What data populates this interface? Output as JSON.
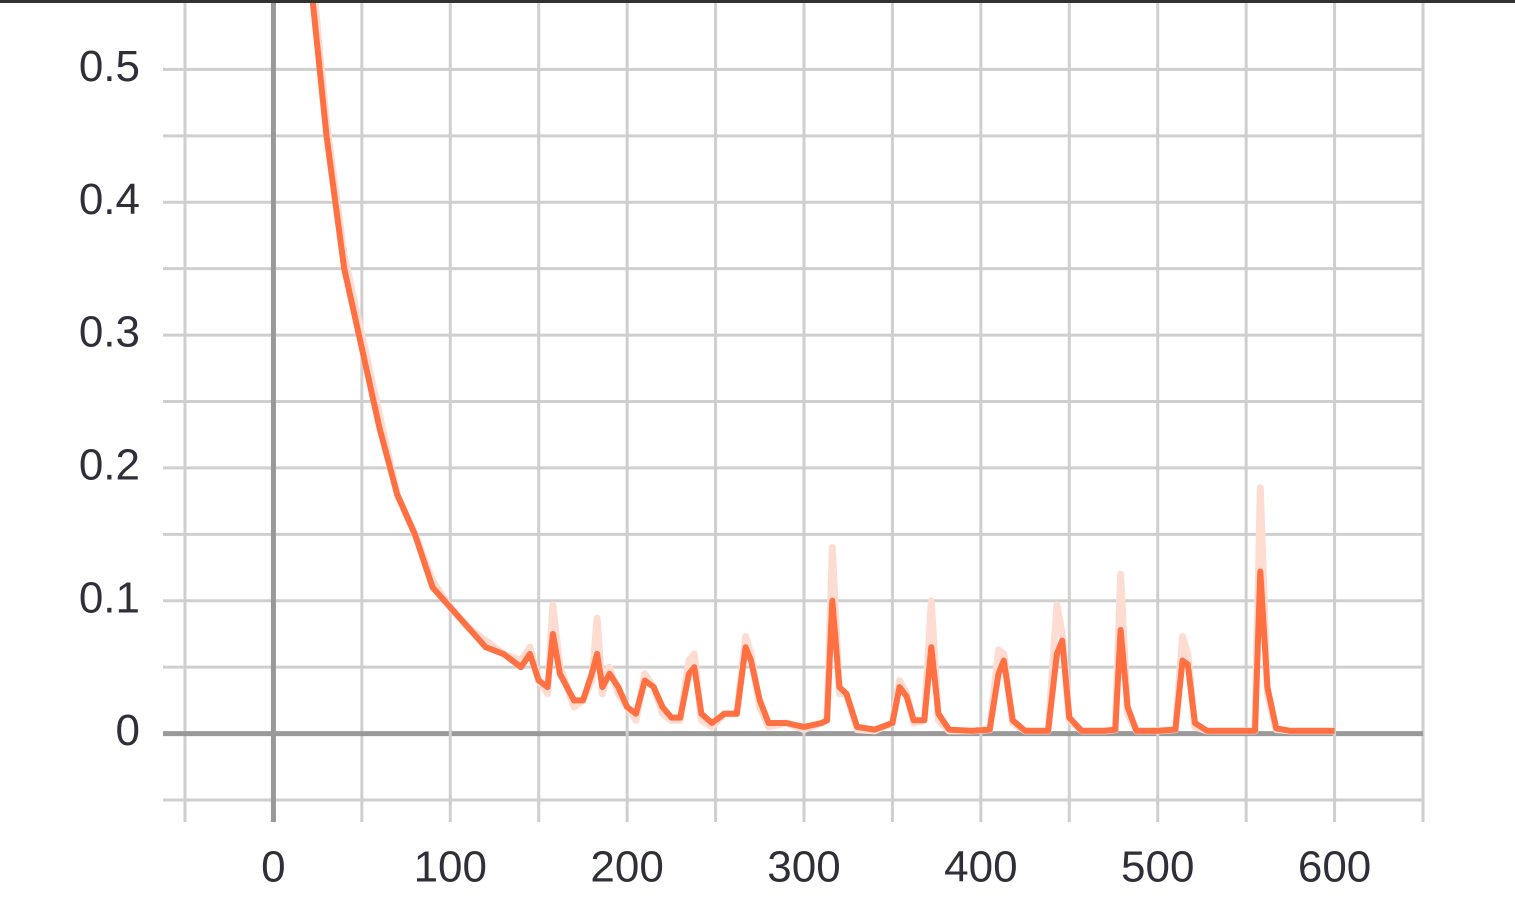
{
  "chart_data": {
    "type": "line",
    "xlim": [
      -50,
      650
    ],
    "ylim": [
      -0.05,
      0.55
    ],
    "xticks": [
      0,
      100,
      200,
      300,
      400,
      500,
      600
    ],
    "yticks": [
      0,
      0.1,
      0.2,
      0.3,
      0.4,
      0.5
    ],
    "x_minor_ticks": [
      -50,
      50,
      150,
      250,
      350,
      450,
      550,
      650
    ],
    "y_minor_ticks": [
      -0.05,
      0.05,
      0.15,
      0.25,
      0.35,
      0.45
    ],
    "grid": true,
    "x": [
      20,
      30,
      40,
      50,
      60,
      70,
      80,
      90,
      100,
      110,
      120,
      130,
      140,
      145,
      150,
      155,
      158,
      162,
      170,
      175,
      180,
      183,
      186,
      190,
      195,
      200,
      205,
      210,
      215,
      220,
      225,
      230,
      235,
      238,
      242,
      248,
      255,
      262,
      267,
      270,
      275,
      280,
      290,
      300,
      310,
      313,
      316,
      320,
      324,
      330,
      340,
      350,
      354,
      358,
      362,
      368,
      372,
      376,
      382,
      395,
      405,
      410,
      413,
      418,
      425,
      438,
      443,
      446,
      450,
      457,
      470,
      476,
      479,
      483,
      488,
      500,
      510,
      514,
      517,
      521,
      528,
      550,
      555,
      558,
      562,
      567,
      575,
      600
    ],
    "series": [
      {
        "color": "#ffdcd2",
        "values": [
          0.6,
          0.46,
          0.36,
          0.3,
          0.24,
          0.18,
          0.15,
          0.115,
          0.095,
          0.08,
          0.07,
          0.06,
          0.055,
          0.065,
          0.04,
          0.03,
          0.097,
          0.05,
          0.02,
          0.025,
          0.04,
          0.087,
          0.03,
          0.05,
          0.03,
          0.02,
          0.01,
          0.045,
          0.035,
          0.015,
          0.01,
          0.01,
          0.055,
          0.06,
          0.01,
          0.005,
          0.015,
          0.015,
          0.073,
          0.06,
          0.02,
          0.005,
          0.008,
          0.003,
          0.008,
          0.01,
          0.14,
          0.03,
          0.03,
          0.003,
          0.002,
          0.008,
          0.04,
          0.03,
          0.008,
          0.01,
          0.1,
          0.01,
          0.002,
          0.002,
          0.003,
          0.063,
          0.06,
          0.008,
          0.002,
          0.002,
          0.097,
          0.075,
          0.01,
          0.002,
          0.002,
          0.003,
          0.12,
          0.015,
          0.002,
          0.002,
          0.003,
          0.073,
          0.06,
          0.005,
          0.002,
          0.002,
          0.002,
          0.185,
          0.03,
          0.003,
          0.002,
          0.002
        ]
      },
      {
        "color": "#ff7043",
        "values": [
          0.58,
          0.45,
          0.35,
          0.29,
          0.23,
          0.18,
          0.15,
          0.11,
          0.095,
          0.08,
          0.065,
          0.06,
          0.05,
          0.06,
          0.04,
          0.035,
          0.075,
          0.045,
          0.025,
          0.025,
          0.045,
          0.06,
          0.035,
          0.045,
          0.035,
          0.02,
          0.015,
          0.04,
          0.035,
          0.02,
          0.012,
          0.012,
          0.045,
          0.05,
          0.015,
          0.008,
          0.015,
          0.015,
          0.065,
          0.055,
          0.025,
          0.008,
          0.008,
          0.005,
          0.008,
          0.01,
          0.1,
          0.035,
          0.03,
          0.005,
          0.003,
          0.008,
          0.035,
          0.028,
          0.01,
          0.01,
          0.065,
          0.015,
          0.003,
          0.002,
          0.003,
          0.045,
          0.055,
          0.01,
          0.002,
          0.002,
          0.06,
          0.07,
          0.012,
          0.002,
          0.002,
          0.003,
          0.078,
          0.02,
          0.002,
          0.002,
          0.003,
          0.055,
          0.052,
          0.008,
          0.002,
          0.002,
          0.002,
          0.122,
          0.035,
          0.004,
          0.002,
          0.002
        ]
      }
    ]
  }
}
